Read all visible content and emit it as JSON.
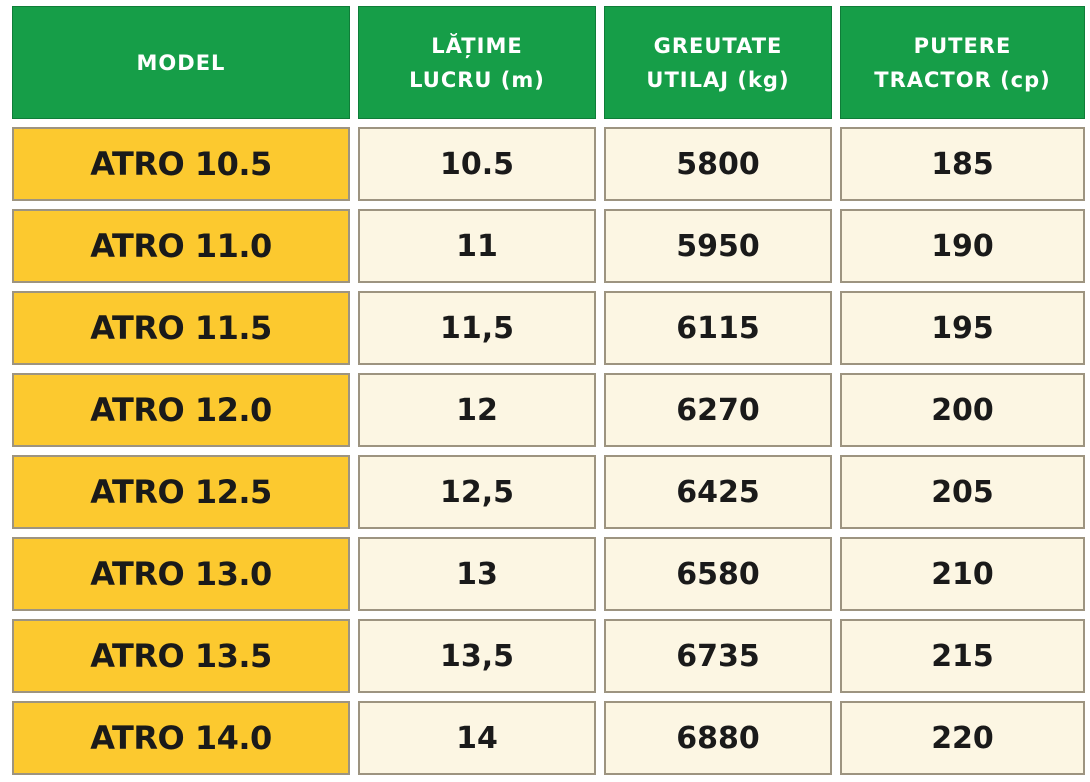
{
  "table": {
    "headers": [
      [
        "MODEL"
      ],
      [
        "LĂȚIME",
        "LUCRU (m)"
      ],
      [
        "GREUTATE",
        "UTILAJ (kg)"
      ],
      [
        "PUTERE",
        "TRACTOR (cp)"
      ]
    ],
    "rows": [
      {
        "model": "ATRO 10.5",
        "latime": "10.5",
        "greutate": "5800",
        "putere": "185"
      },
      {
        "model": "ATRO 11.0",
        "latime": "11",
        "greutate": "5950",
        "putere": "190"
      },
      {
        "model": "ATRO 11.5",
        "latime": "11,5",
        "greutate": "6115",
        "putere": "195"
      },
      {
        "model": "ATRO 12.0",
        "latime": "12",
        "greutate": "6270",
        "putere": "200"
      },
      {
        "model": "ATRO 12.5",
        "latime": "12,5",
        "greutate": "6425",
        "putere": "205"
      },
      {
        "model": "ATRO 13.0",
        "latime": "13",
        "greutate": "6580",
        "putere": "210"
      },
      {
        "model": "ATRO 13.5",
        "latime": "13,5",
        "greutate": "6735",
        "putere": "215"
      },
      {
        "model": "ATRO 14.0",
        "latime": "14",
        "greutate": "6880",
        "putere": "220"
      }
    ]
  },
  "colors": {
    "header_green": "#169e48",
    "model_yellow": "#fcc92f",
    "cell_cream": "#fcf6e3"
  }
}
